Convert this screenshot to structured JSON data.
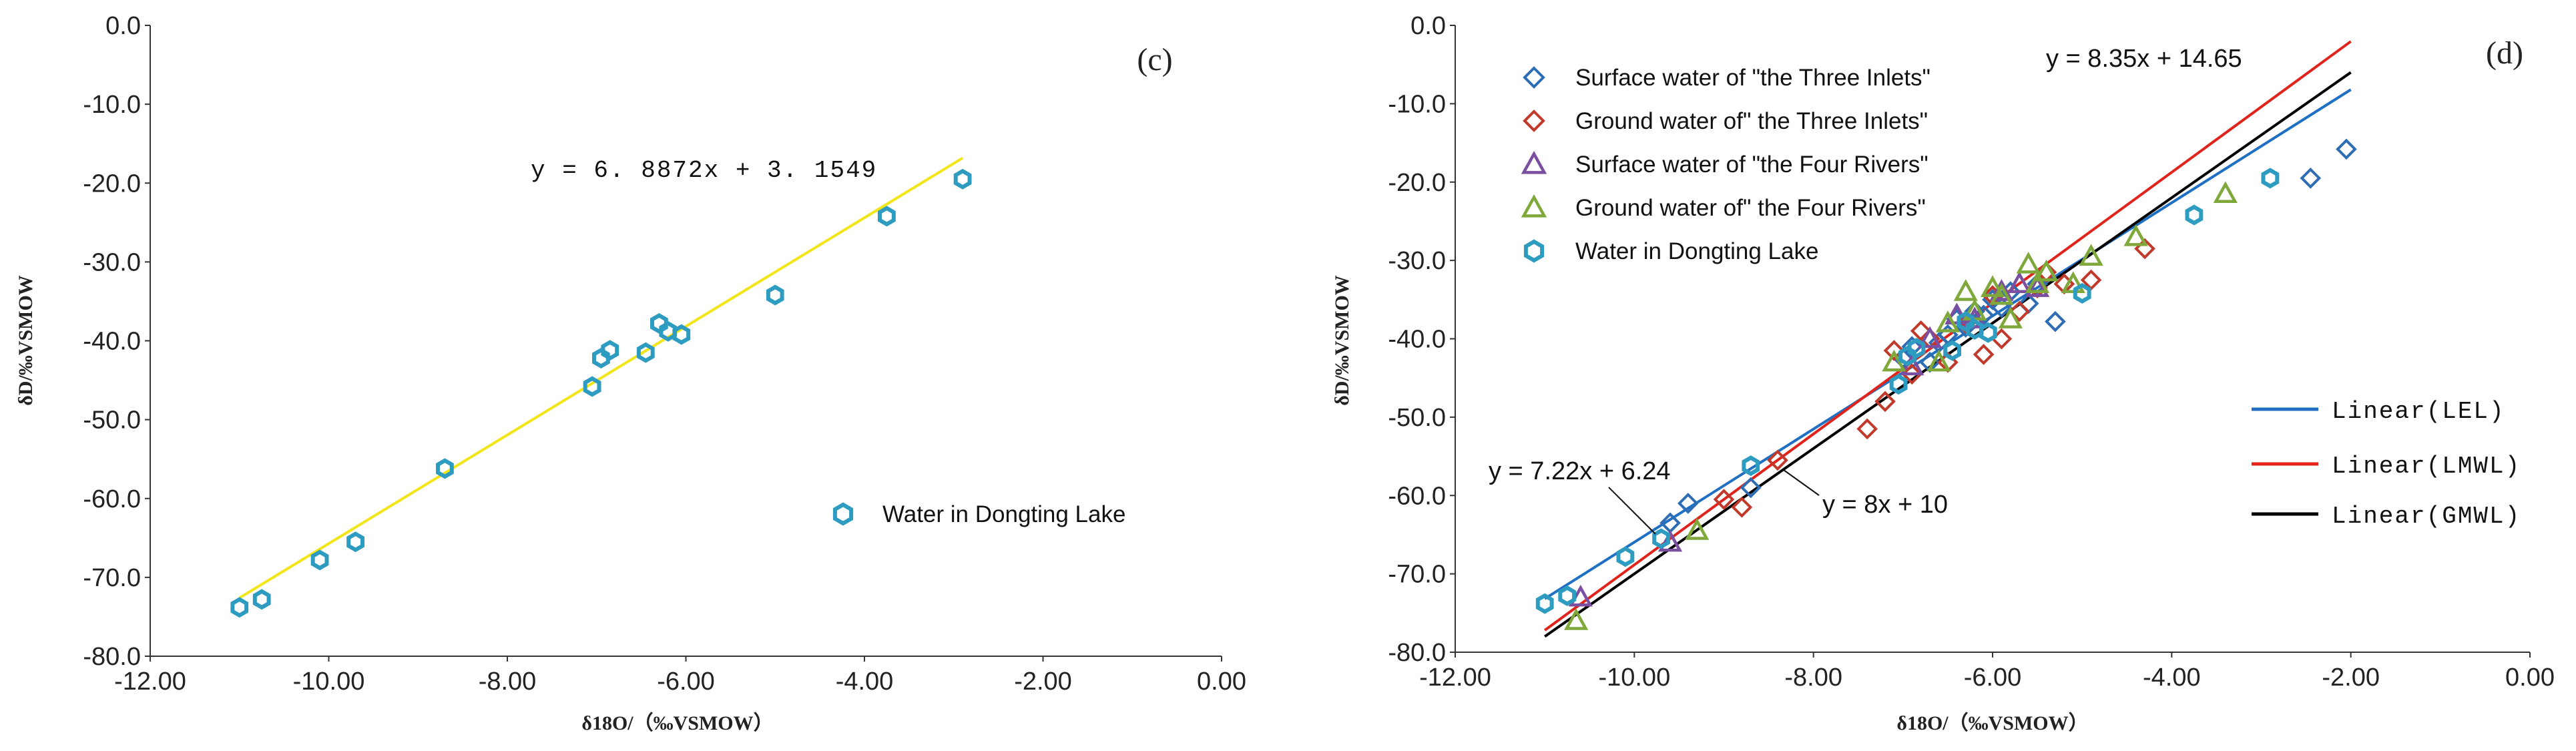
{
  "colors": {
    "surface_three_inlets": "#2E6DB4",
    "ground_three_inlets": "#C0392B",
    "surface_four_rivers": "#7B4FA0",
    "ground_four_rivers": "#7FA83A",
    "dongting": "#2D9CC0",
    "lel": "#1F6FC2",
    "lmwl": "#E0231B",
    "gmwl": "#000000",
    "fit_c": "#F2E61A"
  },
  "chart_data": [
    {
      "type": "scatter",
      "panel_label": "(c)",
      "xlabel": "δ18O/（‰VSMOW）",
      "ylabel": "δD/‰VSMOW",
      "xlim": [
        -12,
        0
      ],
      "ylim": [
        -80,
        0
      ],
      "x_ticks": [
        "-12.00",
        "-10.00",
        "-8.00",
        "-6.00",
        "-4.00",
        "-2.00",
        "0.00"
      ],
      "y_ticks": [
        "-80.0",
        "-70.0",
        "-60.0",
        "-50.0",
        "-40.0",
        "-30.0",
        "-20.0",
        "-10.0",
        "0.0"
      ],
      "series": [
        {
          "name": "Water in Dongting Lake",
          "marker": "hexagon",
          "x": [
            -11.0,
            -10.75,
            -10.1,
            -9.7,
            -8.7,
            -7.05,
            -6.95,
            -6.85,
            -6.45,
            -6.3,
            -6.2,
            -6.05,
            -5.0,
            -3.75,
            -2.9
          ],
          "y": [
            -73.8,
            -72.8,
            -67.8,
            -65.5,
            -56.2,
            -45.8,
            -42.2,
            -41.2,
            -41.5,
            -37.8,
            -38.8,
            -39.2,
            -34.2,
            -24.2,
            -19.5
          ]
        }
      ],
      "fit_line": {
        "label": "y = 6. 8872x + 3. 1549",
        "slope": 6.8872,
        "intercept": 3.1549,
        "x_range": [
          -11.0,
          -2.9
        ]
      }
    },
    {
      "type": "scatter",
      "panel_label": "(d)",
      "xlabel": "δ18O/（‰VSMOW）",
      "ylabel": "δD/‰VSMOW",
      "xlim": [
        -12,
        0
      ],
      "ylim": [
        -80,
        0
      ],
      "x_ticks": [
        "-12.00",
        "-10.00",
        "-8.00",
        "-6.00",
        "-4.00",
        "-2.00",
        "0.00"
      ],
      "y_ticks": [
        "-80.0",
        "-70.0",
        "-60.0",
        "-50.0",
        "-40.0",
        "-30.0",
        "-20.0",
        "-10.0",
        "0.0"
      ],
      "series": [
        {
          "name": "Surface water of \"the Three Inlets\"",
          "marker": "diamond",
          "x": [
            -9.6,
            -9.4,
            -8.7,
            -7.0,
            -6.9,
            -6.7,
            -6.6,
            -6.5,
            -6.4,
            -6.3,
            -6.2,
            -6.1,
            -6.0,
            -5.9,
            -5.8,
            -5.6,
            -5.5,
            -5.3,
            -2.45,
            -2.05
          ],
          "y": [
            -63.5,
            -61.0,
            -59.0,
            -42.5,
            -41.0,
            -43.0,
            -40.5,
            -39.5,
            -37.5,
            -38.5,
            -36.5,
            -37.0,
            -35.0,
            -36.0,
            -34.0,
            -35.5,
            -33.0,
            -37.8,
            -19.5,
            -15.8
          ]
        },
        {
          "name": "Ground water of\" the Three Inlets\"",
          "marker": "diamond",
          "x": [
            -9.0,
            -8.8,
            -8.4,
            -7.4,
            -7.2,
            -7.1,
            -6.9,
            -6.8,
            -6.7,
            -6.5,
            -6.3,
            -6.1,
            -6.0,
            -5.9,
            -5.7,
            -5.5,
            -5.4,
            -5.2,
            -4.9,
            -4.3
          ],
          "y": [
            -60.5,
            -61.5,
            -55.5,
            -51.5,
            -48.0,
            -41.5,
            -44.5,
            -39.0,
            -40.0,
            -43.0,
            -38.0,
            -42.0,
            -34.5,
            -40.0,
            -36.5,
            -33.5,
            -31.5,
            -33.0,
            -32.5,
            -28.5
          ]
        },
        {
          "name": "Surface water of \"the Four Rivers\"",
          "marker": "triangle",
          "x": [
            -10.6,
            -9.6,
            -6.9,
            -6.7,
            -6.4,
            -6.2,
            -5.9,
            -5.7,
            -5.5
          ],
          "y": [
            -73.0,
            -66.0,
            -43.5,
            -40.0,
            -37.0,
            -37.5,
            -34.0,
            -33.0,
            -33.5
          ]
        },
        {
          "name": "Ground water of\" the Four Rivers\"",
          "marker": "triangle",
          "x": [
            -10.65,
            -9.3,
            -7.1,
            -6.6,
            -6.5,
            -6.3,
            -6.2,
            -6.0,
            -5.9,
            -5.8,
            -5.6,
            -5.5,
            -5.4,
            -5.1,
            -4.9,
            -4.4,
            -3.4
          ],
          "y": [
            -76.0,
            -64.5,
            -43.0,
            -43.0,
            -38.0,
            -34.0,
            -36.5,
            -33.5,
            -34.5,
            -37.5,
            -30.5,
            -33.0,
            -31.5,
            -33.0,
            -29.5,
            -27.0,
            -21.5
          ]
        },
        {
          "name": "Water in Dongting Lake",
          "marker": "hexagon",
          "x": [
            -11.0,
            -10.75,
            -10.1,
            -9.7,
            -8.7,
            -7.05,
            -6.95,
            -6.85,
            -6.45,
            -6.3,
            -6.2,
            -6.05,
            -5.0,
            -3.75,
            -2.9
          ],
          "y": [
            -73.8,
            -72.8,
            -67.8,
            -65.5,
            -56.2,
            -45.8,
            -42.2,
            -41.2,
            -41.5,
            -37.8,
            -38.8,
            -39.2,
            -34.2,
            -24.2,
            -19.5
          ]
        }
      ],
      "lines": [
        {
          "name": "Linear(LEL)",
          "slope": 7.22,
          "intercept": 6.24,
          "x_range": [
            -11.0,
            -2.0
          ]
        },
        {
          "name": "Linear(LMWL)",
          "slope": 8.35,
          "intercept": 14.65,
          "x_range": [
            -11.0,
            -2.0
          ]
        },
        {
          "name": "Linear(GMWL)",
          "slope": 8.0,
          "intercept": 10.0,
          "x_range": [
            -11.0,
            -2.0
          ]
        }
      ],
      "annotations": [
        "y = 8.35x + 14.65",
        "y = 7.22x + 6.24",
        "y = 8x + 10"
      ]
    }
  ]
}
